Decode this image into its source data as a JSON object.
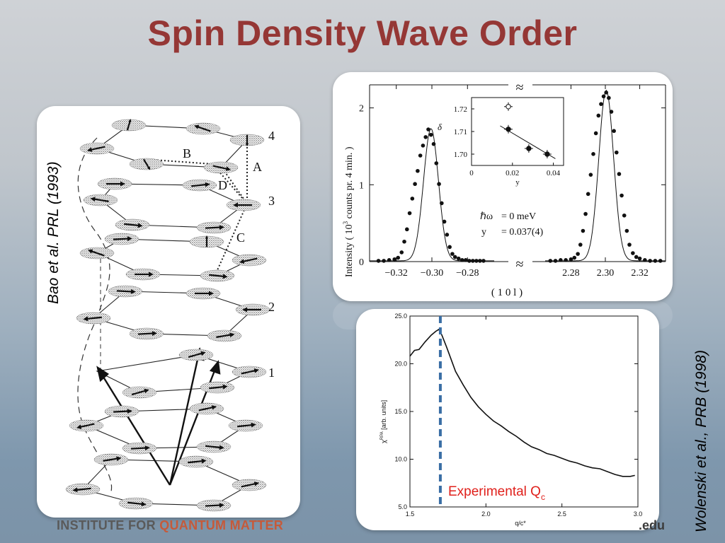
{
  "title": "Spin Density Wave Order",
  "citations": {
    "left": "Bao et al. PRL (1993)",
    "right": "Wolenski et al., PRB (1998)"
  },
  "footer": {
    "institute_prefix": "INSTITUTE FOR ",
    "institute_name": "QUANTUM MATTER",
    "domain_suffix": ".edu"
  },
  "spin_diagram": {
    "layer_labels": [
      "4",
      "3",
      "2",
      "1"
    ],
    "bond_labels": [
      "A",
      "B",
      "C",
      "D"
    ]
  },
  "colors": {
    "title": "#953735",
    "experimental_line": "#3a6ea5",
    "experimental_label": "#e0201b"
  },
  "chart_data": [
    {
      "type": "scatter",
      "panel": "neutron-scattering",
      "ylabel": "Intensity ( 10^3 counts pr. 4 min. )",
      "ylabel_parts": [
        "Intensity ( 10",
        "3",
        " counts pr. 4 min. )"
      ],
      "xlabel": "( 1 0 l )",
      "ylim": [
        0,
        2.3
      ],
      "y_ticks": [
        "0",
        "1",
        "2"
      ],
      "axis_break": "≈",
      "left_window": {
        "xlim": [
          -0.335,
          -0.265
        ],
        "x_ticks": [
          "-0.32",
          "-0.30",
          "-0.28"
        ],
        "tick_values": [
          -0.32,
          -0.3,
          -0.28
        ],
        "peak_center": -0.3005,
        "peak_height": 1.72,
        "peak_sigma": 0.0042,
        "points": [
          [
            -0.33,
            0.01
          ],
          [
            -0.327,
            0.01
          ],
          [
            -0.324,
            0.02
          ],
          [
            -0.321,
            0.03
          ],
          [
            -0.319,
            0.05
          ],
          [
            -0.317,
            0.12
          ],
          [
            -0.3155,
            0.26
          ],
          [
            -0.314,
            0.42
          ],
          [
            -0.3125,
            0.63
          ],
          [
            -0.311,
            0.82
          ],
          [
            -0.3095,
            1.01
          ],
          [
            -0.308,
            1.18
          ],
          [
            -0.3065,
            1.38
          ],
          [
            -0.305,
            1.51
          ],
          [
            -0.3035,
            1.62
          ],
          [
            -0.302,
            1.72
          ],
          [
            -0.3005,
            1.65
          ],
          [
            -0.299,
            1.53
          ],
          [
            -0.2975,
            1.28
          ],
          [
            -0.296,
            1.01
          ],
          [
            -0.2945,
            0.76
          ],
          [
            -0.293,
            0.52
          ],
          [
            -0.2915,
            0.35
          ],
          [
            -0.29,
            0.19
          ],
          [
            -0.2885,
            0.1
          ],
          [
            -0.287,
            0.06
          ],
          [
            -0.285,
            0.04
          ],
          [
            -0.283,
            0.02
          ],
          [
            -0.281,
            0.02
          ],
          [
            -0.279,
            0.01
          ],
          [
            -0.277,
            0.01
          ],
          [
            -0.275,
            0.01
          ],
          [
            -0.273,
            0.01
          ],
          [
            -0.271,
            0.01
          ]
        ]
      },
      "right_window": {
        "xlim": [
          2.265,
          2.335
        ],
        "x_ticks": [
          "2.28",
          "2.30",
          "2.32"
        ],
        "tick_values": [
          2.28,
          2.3,
          2.32
        ],
        "peak_center": 2.3005,
        "peak_height": 2.22,
        "peak_sigma": 0.0043,
        "points": [
          [
            2.268,
            0.01
          ],
          [
            2.271,
            0.01
          ],
          [
            2.274,
            0.02
          ],
          [
            2.277,
            0.02
          ],
          [
            2.28,
            0.03
          ],
          [
            2.282,
            0.05
          ],
          [
            2.284,
            0.1
          ],
          [
            2.2855,
            0.22
          ],
          [
            2.287,
            0.4
          ],
          [
            2.2885,
            0.62
          ],
          [
            2.29,
            0.88
          ],
          [
            2.2915,
            1.13
          ],
          [
            2.293,
            1.4
          ],
          [
            2.2945,
            1.67
          ],
          [
            2.296,
            1.9
          ],
          [
            2.2975,
            2.05
          ],
          [
            2.299,
            2.15
          ],
          [
            2.3005,
            2.2
          ],
          [
            2.302,
            2.13
          ],
          [
            2.3035,
            1.95
          ],
          [
            2.305,
            1.7
          ],
          [
            2.3065,
            1.42
          ],
          [
            2.308,
            1.14
          ],
          [
            2.3095,
            0.86
          ],
          [
            2.311,
            0.6
          ],
          [
            2.3125,
            0.4
          ],
          [
            2.314,
            0.22
          ],
          [
            2.316,
            0.11
          ],
          [
            2.318,
            0.06
          ],
          [
            2.32,
            0.04
          ],
          [
            2.323,
            0.02
          ],
          [
            2.326,
            0.01
          ],
          [
            2.329,
            0.01
          ],
          [
            2.332,
            0.01
          ]
        ]
      },
      "annotation": {
        "line1_prefix": "ℏω",
        "line1_rest": "= 0  meV",
        "line2_prefix": "y",
        "line2_rest": "= 0.037(4)"
      },
      "inset": {
        "type": "scatter",
        "xlabel": "y",
        "ylabel": "δ",
        "xlim": [
          0,
          0.045
        ],
        "ylim": [
          1.695,
          1.725
        ],
        "x_ticks": [
          "0",
          "0.02",
          "0.04"
        ],
        "x_tick_values": [
          0,
          0.02,
          0.04
        ],
        "y_ticks": [
          "1.70",
          "1.71",
          "1.72"
        ],
        "y_tick_values": [
          1.7,
          1.71,
          1.72
        ],
        "points": [
          {
            "x": 0.018,
            "y": 1.721,
            "open": true
          },
          {
            "x": 0.018,
            "y": 1.711,
            "open": false
          },
          {
            "x": 0.028,
            "y": 1.7025,
            "open": false
          },
          {
            "x": 0.037,
            "y": 1.7,
            "open": false
          }
        ],
        "fit_line": [
          [
            0.014,
            1.7125
          ],
          [
            0.041,
            1.698
          ]
        ]
      }
    },
    {
      "type": "line",
      "panel": "susceptibility",
      "xlabel": "q/c*",
      "ylabel": "χ^RPA [arb. units]",
      "ylabel_parts": [
        "χ",
        "RPA",
        " [arb. units]"
      ],
      "xlim": [
        1.5,
        3.0
      ],
      "ylim": [
        5.0,
        25.0
      ],
      "x_ticks": [
        "1.5",
        "2.0",
        "2.5",
        "3.0"
      ],
      "x_tick_values": [
        1.5,
        2.0,
        2.5,
        3.0
      ],
      "y_ticks": [
        "5.0",
        "10.0",
        "15.0",
        "20.0",
        "25.0"
      ],
      "y_tick_values": [
        5,
        10,
        15,
        20,
        25
      ],
      "series": [
        {
          "values": [
            [
              1.5,
              20.8
            ],
            [
              1.53,
              21.4
            ],
            [
              1.56,
              21.5
            ],
            [
              1.6,
              22.3
            ],
            [
              1.64,
              23.0
            ],
            [
              1.67,
              23.4
            ],
            [
              1.69,
              23.6
            ],
            [
              1.71,
              23.0
            ],
            [
              1.74,
              21.8
            ],
            [
              1.77,
              20.5
            ],
            [
              1.8,
              19.2
            ],
            [
              1.85,
              17.8
            ],
            [
              1.9,
              16.5
            ],
            [
              1.95,
              15.5
            ],
            [
              2.0,
              14.7
            ],
            [
              2.05,
              14.0
            ],
            [
              2.1,
              13.5
            ],
            [
              2.15,
              12.9
            ],
            [
              2.2,
              12.4
            ],
            [
              2.25,
              11.8
            ],
            [
              2.3,
              11.3
            ],
            [
              2.35,
              11.0
            ],
            [
              2.4,
              10.6
            ],
            [
              2.45,
              10.4
            ],
            [
              2.5,
              10.1
            ],
            [
              2.55,
              9.8
            ],
            [
              2.6,
              9.6
            ],
            [
              2.65,
              9.3
            ],
            [
              2.7,
              9.1
            ],
            [
              2.75,
              9.0
            ],
            [
              2.8,
              8.7
            ],
            [
              2.85,
              8.4
            ],
            [
              2.9,
              8.2
            ],
            [
              2.95,
              8.2
            ],
            [
              2.98,
              8.3
            ]
          ]
        }
      ],
      "experimental_q": 1.7,
      "experimental_label_main": "Experimental Q",
      "experimental_label_sub": "c"
    }
  ]
}
